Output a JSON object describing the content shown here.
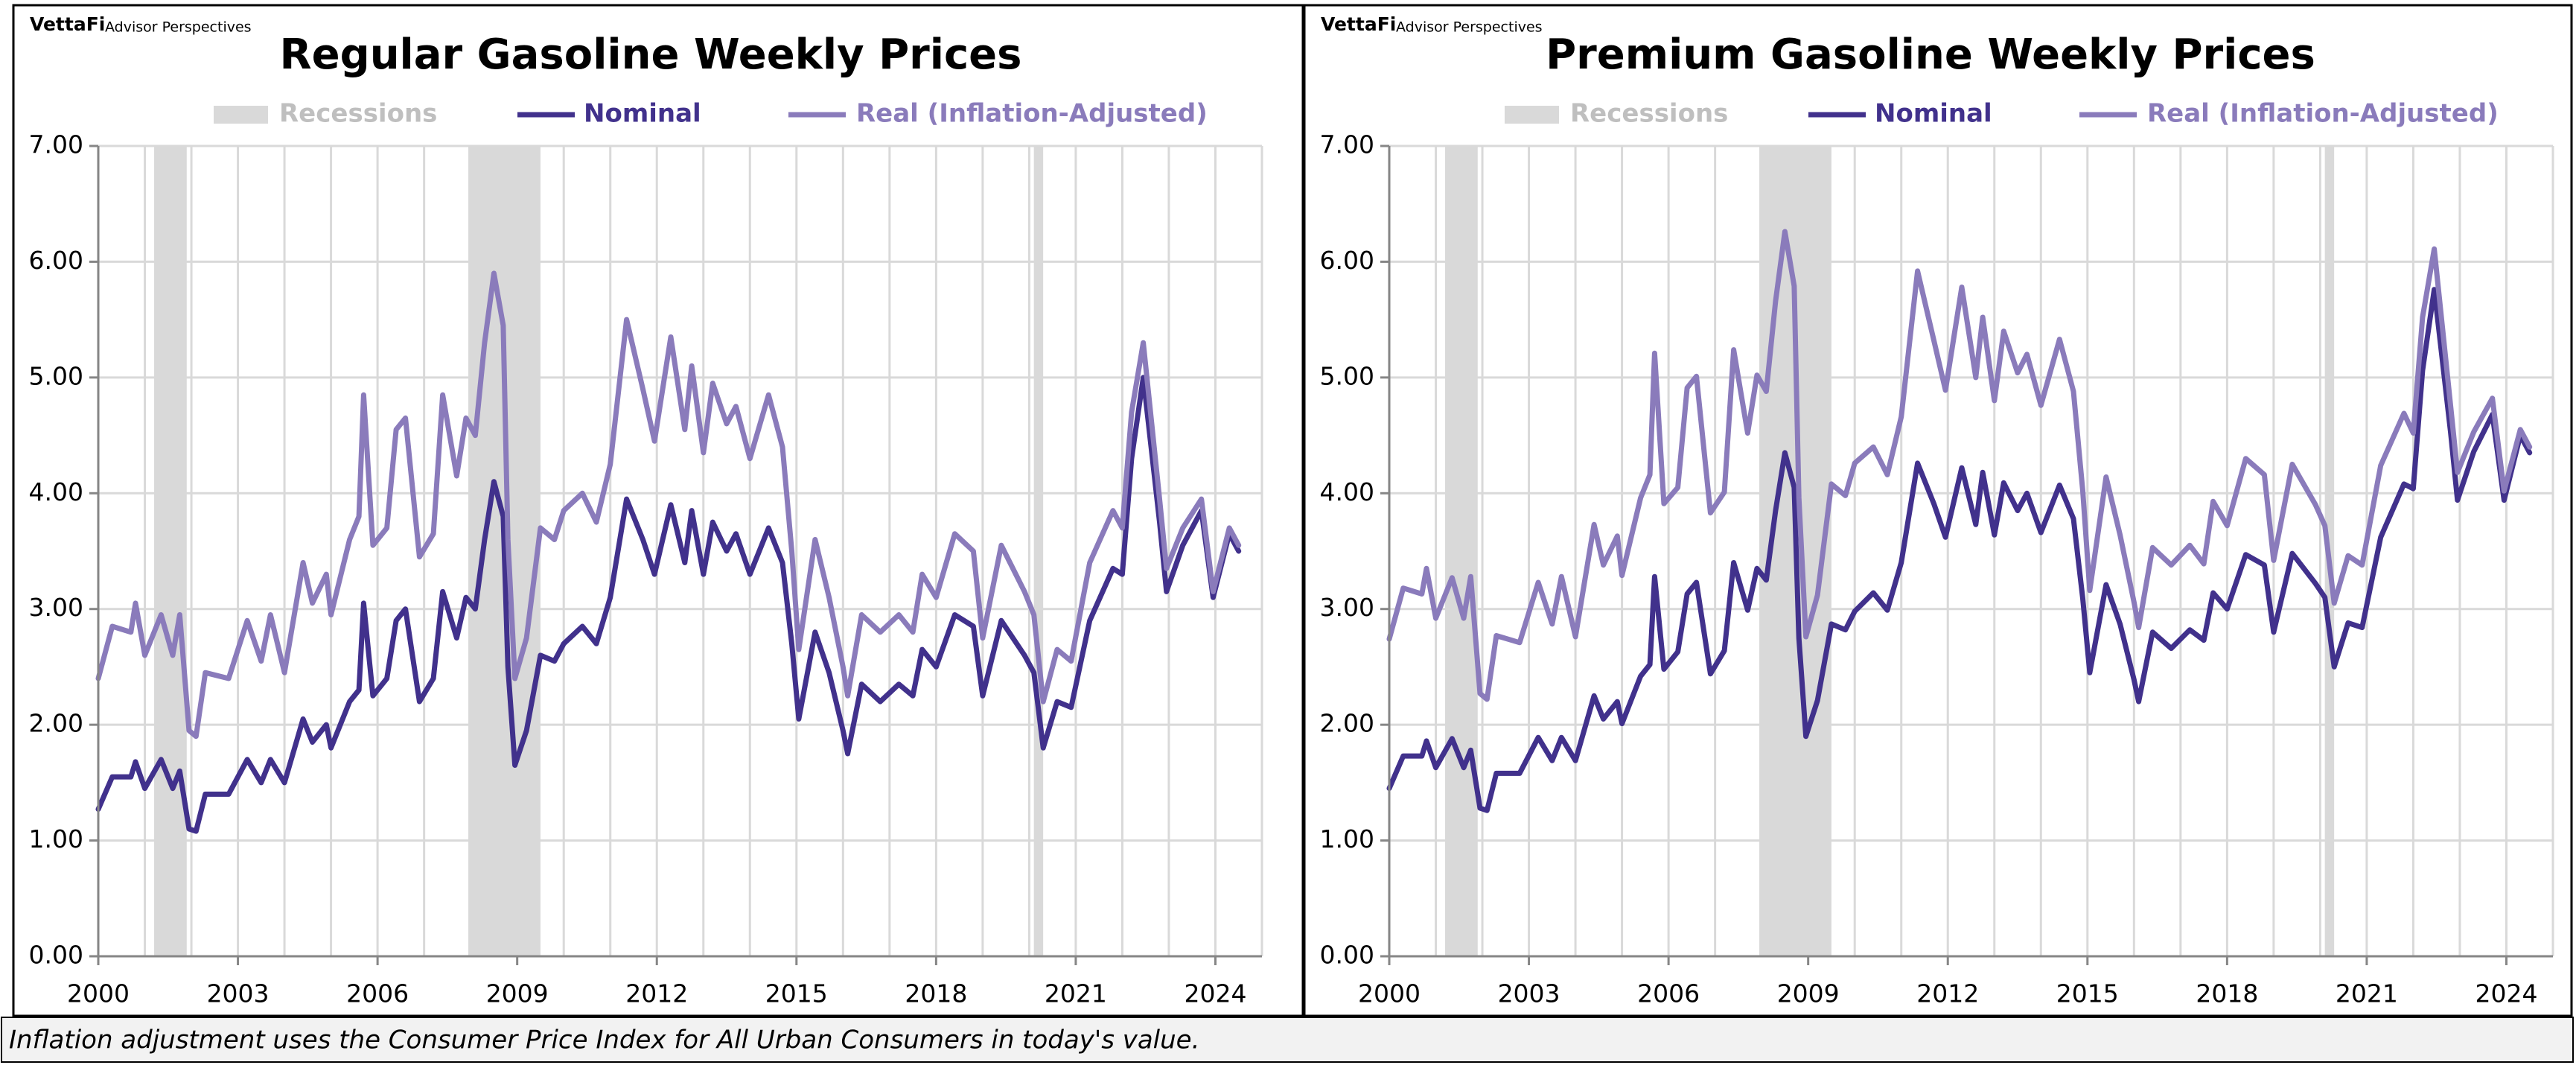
{
  "note": "Inflation adjustment uses the Consumer Price Index for All Urban Consumers in today's value.",
  "chart_data": [
    {
      "type": "line",
      "title": "Regular Gasoline Weekly Prices",
      "logo": "VettaFi",
      "source": "Advisor Perspectives",
      "x": [
        2000.0,
        2000.3,
        2000.7,
        2000.8,
        2001.0,
        2001.35,
        2001.6,
        2001.75,
        2001.95,
        2002.1,
        2002.3,
        2002.8,
        2003.2,
        2003.5,
        2003.7,
        2004.0,
        2004.4,
        2004.6,
        2004.9,
        2005.0,
        2005.4,
        2005.6,
        2005.7,
        2005.9,
        2006.2,
        2006.4,
        2006.6,
        2006.9,
        2007.2,
        2007.4,
        2007.7,
        2007.9,
        2008.1,
        2008.3,
        2008.5,
        2008.7,
        2008.8,
        2008.95,
        2009.2,
        2009.5,
        2009.8,
        2010.0,
        2010.4,
        2010.7,
        2011.0,
        2011.35,
        2011.7,
        2011.95,
        2012.3,
        2012.6,
        2012.75,
        2013.0,
        2013.2,
        2013.5,
        2013.7,
        2014.0,
        2014.4,
        2014.7,
        2014.9,
        2015.05,
        2015.4,
        2015.7,
        2016.0,
        2016.1,
        2016.4,
        2016.8,
        2017.2,
        2017.5,
        2017.7,
        2018.0,
        2018.4,
        2018.8,
        2019.0,
        2019.4,
        2019.9,
        2020.1,
        2020.3,
        2020.6,
        2020.9,
        2021.3,
        2021.8,
        2022.0,
        2022.2,
        2022.45,
        2022.8,
        2022.95,
        2023.3,
        2023.7,
        2023.95,
        2024.3,
        2024.5
      ],
      "series": [
        {
          "name": "Nominal",
          "color": "#41318c",
          "values": [
            1.27,
            1.55,
            1.55,
            1.68,
            1.45,
            1.7,
            1.45,
            1.6,
            1.1,
            1.08,
            1.4,
            1.4,
            1.7,
            1.5,
            1.7,
            1.5,
            2.05,
            1.85,
            2.0,
            1.8,
            2.2,
            2.3,
            3.05,
            2.25,
            2.4,
            2.9,
            3.0,
            2.2,
            2.4,
            3.15,
            2.75,
            3.1,
            3.0,
            3.6,
            4.1,
            3.8,
            2.5,
            1.65,
            1.95,
            2.6,
            2.55,
            2.7,
            2.85,
            2.7,
            3.1,
            3.95,
            3.6,
            3.3,
            3.9,
            3.4,
            3.85,
            3.3,
            3.75,
            3.5,
            3.65,
            3.3,
            3.7,
            3.4,
            2.7,
            2.05,
            2.8,
            2.45,
            1.95,
            1.75,
            2.35,
            2.2,
            2.35,
            2.25,
            2.65,
            2.5,
            2.95,
            2.85,
            2.25,
            2.9,
            2.6,
            2.45,
            1.8,
            2.2,
            2.15,
            2.9,
            3.35,
            3.3,
            4.3,
            5.0,
            3.75,
            3.15,
            3.55,
            3.85,
            3.1,
            3.65,
            3.5
          ]
        },
        {
          "name": "Real (Inflation-Adjusted)",
          "color": "#8a7bbb",
          "values": [
            2.4,
            2.85,
            2.8,
            3.05,
            2.6,
            2.95,
            2.6,
            2.95,
            1.95,
            1.9,
            2.45,
            2.4,
            2.9,
            2.55,
            2.95,
            2.45,
            3.4,
            3.05,
            3.3,
            2.95,
            3.6,
            3.8,
            4.85,
            3.55,
            3.7,
            4.55,
            4.65,
            3.45,
            3.65,
            4.85,
            4.15,
            4.65,
            4.5,
            5.3,
            5.9,
            5.45,
            3.6,
            2.4,
            2.75,
            3.7,
            3.6,
            3.85,
            4.0,
            3.75,
            4.25,
            5.5,
            4.9,
            4.45,
            5.35,
            4.55,
            5.1,
            4.35,
            4.95,
            4.6,
            4.75,
            4.3,
            4.85,
            4.4,
            3.5,
            2.65,
            3.6,
            3.1,
            2.5,
            2.25,
            2.95,
            2.8,
            2.95,
            2.8,
            3.3,
            3.1,
            3.65,
            3.5,
            2.75,
            3.55,
            3.15,
            2.95,
            2.2,
            2.65,
            2.55,
            3.4,
            3.85,
            3.7,
            4.7,
            5.3,
            3.95,
            3.35,
            3.7,
            3.95,
            3.15,
            3.7,
            3.55
          ]
        }
      ],
      "recessions": {
        "name": "Recessions",
        "color": "#d9d9d9",
        "spans": [
          [
            2001.2,
            2001.9
          ],
          [
            2007.95,
            2009.5
          ],
          [
            2020.1,
            2020.3
          ]
        ]
      },
      "xlim": [
        2000,
        2025
      ],
      "xticks": [
        2000,
        2003,
        2006,
        2009,
        2012,
        2015,
        2018,
        2021,
        2024
      ],
      "xgrid": [
        2000,
        2001,
        2002,
        2003,
        2004,
        2005,
        2006,
        2007,
        2008,
        2009,
        2010,
        2011,
        2012,
        2013,
        2014,
        2015,
        2016,
        2017,
        2018,
        2019,
        2020,
        2021,
        2022,
        2023,
        2024,
        2025
      ],
      "ylim": [
        0,
        7
      ],
      "yticks": [
        {
          "value": 0,
          "label": "0.00"
        },
        {
          "value": 1,
          "label": "1.00"
        },
        {
          "value": 2,
          "label": "2.00"
        },
        {
          "value": 3,
          "label": "3.00"
        },
        {
          "value": 4,
          "label": "4.00"
        },
        {
          "value": 5,
          "label": "5.00"
        },
        {
          "value": 6,
          "label": "6.00"
        },
        {
          "value": 7,
          "label": "7.00"
        }
      ],
      "grid": true,
      "legend": "top"
    },
    {
      "type": "line",
      "title": "Premium Gasoline Weekly Prices",
      "logo": "VettaFi",
      "source": "Advisor Perspectives",
      "x": [
        2000.0,
        2000.3,
        2000.7,
        2000.8,
        2001.0,
        2001.35,
        2001.6,
        2001.75,
        2001.95,
        2002.1,
        2002.3,
        2002.8,
        2003.2,
        2003.5,
        2003.7,
        2004.0,
        2004.4,
        2004.6,
        2004.9,
        2005.0,
        2005.4,
        2005.6,
        2005.7,
        2005.9,
        2006.2,
        2006.4,
        2006.6,
        2006.9,
        2007.2,
        2007.4,
        2007.7,
        2007.9,
        2008.1,
        2008.3,
        2008.5,
        2008.7,
        2008.8,
        2008.95,
        2009.2,
        2009.5,
        2009.8,
        2010.0,
        2010.4,
        2010.7,
        2011.0,
        2011.35,
        2011.7,
        2011.95,
        2012.3,
        2012.6,
        2012.75,
        2013.0,
        2013.2,
        2013.5,
        2013.7,
        2014.0,
        2014.4,
        2014.7,
        2014.9,
        2015.05,
        2015.4,
        2015.7,
        2016.0,
        2016.1,
        2016.4,
        2016.8,
        2017.2,
        2017.5,
        2017.7,
        2018.0,
        2018.4,
        2018.8,
        2019.0,
        2019.4,
        2019.9,
        2020.1,
        2020.3,
        2020.6,
        2020.9,
        2021.3,
        2021.8,
        2022.0,
        2022.2,
        2022.45,
        2022.8,
        2022.95,
        2023.3,
        2023.7,
        2023.95,
        2024.3,
        2024.5
      ],
      "series": [
        {
          "name": "Nominal",
          "color": "#41318c",
          "values": [
            1.45,
            1.73,
            1.73,
            1.86,
            1.63,
            1.88,
            1.63,
            1.78,
            1.28,
            1.26,
            1.58,
            1.58,
            1.89,
            1.69,
            1.89,
            1.69,
            2.25,
            2.05,
            2.2,
            2.01,
            2.42,
            2.52,
            3.28,
            2.48,
            2.63,
            3.13,
            3.23,
            2.44,
            2.64,
            3.4,
            2.99,
            3.35,
            3.25,
            3.85,
            4.35,
            4.05,
            2.75,
            1.9,
            2.21,
            2.87,
            2.82,
            2.98,
            3.14,
            2.99,
            3.4,
            4.26,
            3.91,
            3.62,
            4.22,
            3.73,
            4.18,
            3.64,
            4.09,
            3.85,
            4.0,
            3.66,
            4.07,
            3.78,
            3.09,
            2.45,
            3.21,
            2.87,
            2.39,
            2.2,
            2.8,
            2.66,
            2.82,
            2.73,
            3.14,
            3.0,
            3.47,
            3.38,
            2.8,
            3.48,
            3.22,
            3.1,
            2.5,
            2.88,
            2.84,
            3.62,
            4.08,
            4.04,
            5.06,
            5.76,
            4.53,
            3.94,
            4.36,
            4.68,
            3.94,
            4.5,
            4.35
          ]
        },
        {
          "name": "Real (Inflation-Adjusted)",
          "color": "#8a7bbb",
          "values": [
            2.74,
            3.18,
            3.13,
            3.35,
            2.92,
            3.27,
            2.92,
            3.28,
            2.27,
            2.22,
            2.77,
            2.71,
            3.23,
            2.87,
            3.28,
            2.76,
            3.73,
            3.38,
            3.63,
            3.29,
            3.96,
            4.16,
            5.21,
            3.91,
            4.05,
            4.91,
            5.01,
            3.83,
            4.01,
            5.24,
            4.52,
            5.02,
            4.88,
            5.66,
            6.26,
            5.79,
            3.96,
            2.76,
            3.12,
            4.08,
            3.98,
            4.26,
            4.4,
            4.16,
            4.66,
            5.92,
            5.32,
            4.89,
            5.78,
            5.0,
            5.52,
            4.8,
            5.4,
            5.04,
            5.2,
            4.76,
            5.33,
            4.88,
            4.02,
            3.16,
            4.14,
            3.64,
            3.06,
            2.84,
            3.53,
            3.38,
            3.55,
            3.39,
            3.93,
            3.72,
            4.3,
            4.16,
            3.42,
            4.25,
            3.9,
            3.72,
            3.05,
            3.46,
            3.38,
            4.24,
            4.69,
            4.52,
            5.52,
            6.11,
            4.76,
            4.18,
            4.53,
            4.82,
            4.02,
            4.55,
            4.4
          ]
        }
      ],
      "recessions": {
        "name": "Recessions",
        "color": "#d9d9d9",
        "spans": [
          [
            2001.2,
            2001.9
          ],
          [
            2007.95,
            2009.5
          ],
          [
            2020.1,
            2020.3
          ]
        ]
      },
      "xlim": [
        2000,
        2025
      ],
      "xticks": [
        2000,
        2003,
        2006,
        2009,
        2012,
        2015,
        2018,
        2021,
        2024
      ],
      "xgrid": [
        2000,
        2001,
        2002,
        2003,
        2004,
        2005,
        2006,
        2007,
        2008,
        2009,
        2010,
        2011,
        2012,
        2013,
        2014,
        2015,
        2016,
        2017,
        2018,
        2019,
        2020,
        2021,
        2022,
        2023,
        2024,
        2025
      ],
      "ylim": [
        0,
        7
      ],
      "yticks": [
        {
          "value": 0,
          "label": "0.00"
        },
        {
          "value": 1,
          "label": "1.00"
        },
        {
          "value": 2,
          "label": "2.00"
        },
        {
          "value": 3,
          "label": "3.00"
        },
        {
          "value": 4,
          "label": "4.00"
        },
        {
          "value": 5,
          "label": "5.00"
        },
        {
          "value": 6,
          "label": "6.00"
        },
        {
          "value": 7,
          "label": "7.00"
        }
      ],
      "grid": true,
      "legend": "top"
    }
  ]
}
